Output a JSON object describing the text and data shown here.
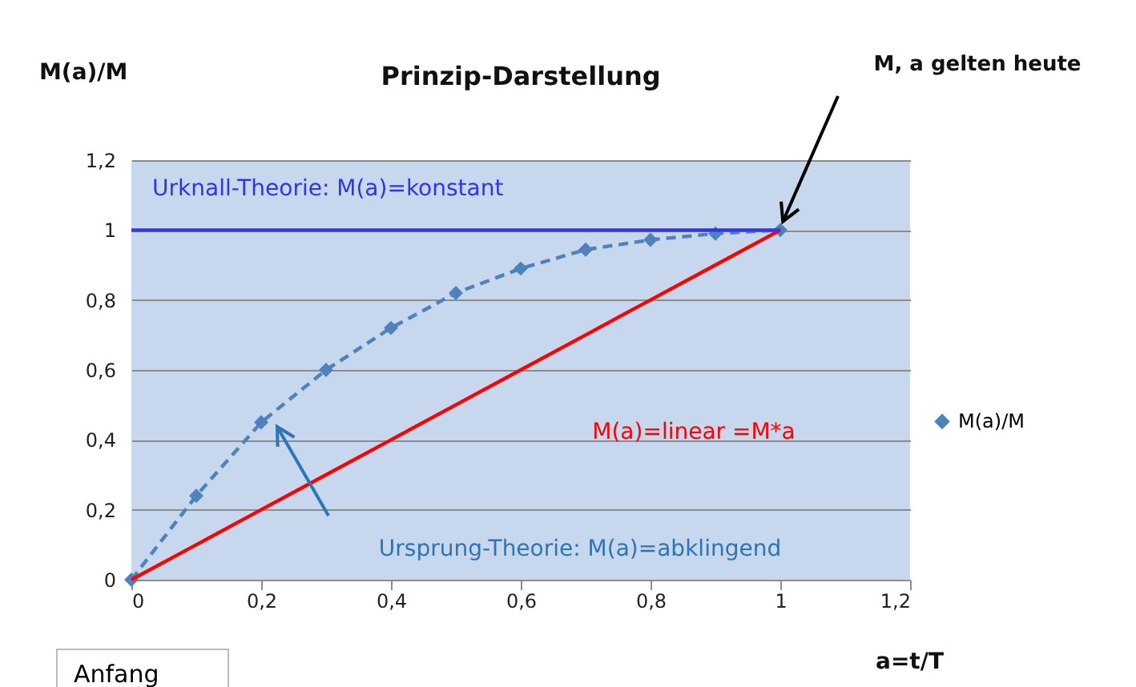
{
  "chart_data": {
    "type": "line",
    "title": "Prinzip-Darstellung",
    "xlabel": "a=t/T",
    "ylabel": "M(a)/M",
    "x": [
      0,
      0.1,
      0.2,
      0.3,
      0.4,
      0.5,
      0.6,
      0.7,
      0.8,
      0.9,
      1
    ],
    "series": [
      {
        "name": "M(a)/M",
        "color": "#4f81bd",
        "values": [
          0,
          0.24,
          0.45,
          0.6,
          0.72,
          0.82,
          0.89,
          0.944,
          0.972,
          0.99,
          1
        ],
        "marker": "diamond",
        "line_style": "dashed"
      },
      {
        "color": "#ff0000",
        "values": [
          0,
          0.1,
          0.2,
          0.3,
          0.4,
          0.5,
          0.6,
          0.7,
          0.8,
          0.9,
          1
        ],
        "marker": "none",
        "line_style": "solid"
      },
      {
        "color": "#3333ee",
        "values": [
          1,
          1,
          1,
          1,
          1,
          1,
          1,
          1,
          1,
          1,
          1
        ],
        "marker": "none",
        "line_style": "solid"
      }
    ],
    "xlim": [
      0,
      1.2
    ],
    "ylim": [
      0,
      1.2
    ],
    "xticks": [
      0,
      {
        "value": 0.2,
        "label": "0,2"
      },
      {
        "value": 0.4,
        "label": "0,4"
      },
      {
        "value": 0.6,
        "label": "0,6"
      },
      {
        "value": 0.8,
        "label": "0,8"
      },
      1,
      {
        "value": 1.2,
        "label": "1,2"
      }
    ],
    "yticks": [
      0,
      {
        "value": 0.2,
        "label": "0,2"
      },
      {
        "value": 0.4,
        "label": "0,4"
      },
      {
        "value": 0.6,
        "label": "0,6"
      },
      {
        "value": 0.8,
        "label": "0,8"
      },
      1,
      {
        "value": 1.2,
        "label": "1,2"
      }
    ],
    "grid": "y",
    "legend": "right",
    "annotations": [
      "M, a gelten heute",
      "Ursprung-Theorie: M(a)=abklingend",
      "Urknall-Theorie: M(a)=konstant",
      "M(a)=linear =M*a",
      "Anfang"
    ]
  }
}
